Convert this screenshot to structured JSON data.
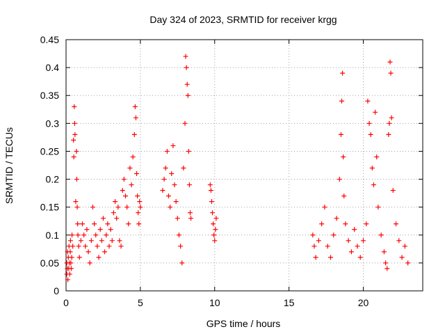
{
  "chart_data": {
    "type": "scatter",
    "title": "Day 324 of 2023, SRMTID for receiver krgg",
    "xlabel": "GPS time / hours",
    "ylabel": "SRMTID / TECUs",
    "xlim": [
      0,
      24
    ],
    "ylim": [
      0,
      0.45
    ],
    "grid": true,
    "marker": "+",
    "color": "#ff0000",
    "x_ticks": [
      0,
      5,
      10,
      15,
      20
    ],
    "x_tick_labels": [
      "0",
      "5",
      "10",
      "15",
      "20"
    ],
    "y_ticks": [
      0,
      0.05,
      0.1,
      0.15,
      0.2,
      0.25,
      0.3,
      0.35,
      0.4,
      0.45
    ],
    "y_tick_labels": [
      "0",
      "0.05",
      "0.1",
      "0.15",
      "0.2",
      "0.25",
      "0.3",
      "0.35",
      "0.4",
      "0.45"
    ],
    "series": [
      {
        "name": "SRMTID",
        "points": [
          [
            0.05,
            0.03
          ],
          [
            0.05,
            0.05
          ],
          [
            0.08,
            0.04
          ],
          [
            0.1,
            0.07
          ],
          [
            0.12,
            0.02
          ],
          [
            0.15,
            0.06
          ],
          [
            0.18,
            0.04
          ],
          [
            0.2,
            0.08
          ],
          [
            0.22,
            0.05
          ],
          [
            0.25,
            0.03
          ],
          [
            0.28,
            0.07
          ],
          [
            0.3,
            0.09
          ],
          [
            0.32,
            0.05
          ],
          [
            0.35,
            0.04
          ],
          [
            0.38,
            0.06
          ],
          [
            0.4,
            0.1
          ],
          [
            0.45,
            0.08
          ],
          [
            0.5,
            0.27
          ],
          [
            0.52,
            0.24
          ],
          [
            0.55,
            0.33
          ],
          [
            0.58,
            0.3
          ],
          [
            0.6,
            0.28
          ],
          [
            0.65,
            0.16
          ],
          [
            0.7,
            0.25
          ],
          [
            0.72,
            0.2
          ],
          [
            0.75,
            0.15
          ],
          [
            0.78,
            0.12
          ],
          [
            0.8,
            0.1
          ],
          [
            0.85,
            0.08
          ],
          [
            0.9,
            0.06
          ],
          [
            1.0,
            0.09
          ],
          [
            1.1,
            0.12
          ],
          [
            1.2,
            0.1
          ],
          [
            1.3,
            0.08
          ],
          [
            1.4,
            0.11
          ],
          [
            1.5,
            0.07
          ],
          [
            1.6,
            0.05
          ],
          [
            1.7,
            0.09
          ],
          [
            1.8,
            0.15
          ],
          [
            1.9,
            0.12
          ],
          [
            2.0,
            0.1
          ],
          [
            2.1,
            0.08
          ],
          [
            2.2,
            0.06
          ],
          [
            2.3,
            0.11
          ],
          [
            2.4,
            0.09
          ],
          [
            2.5,
            0.13
          ],
          [
            2.6,
            0.07
          ],
          [
            2.7,
            0.1
          ],
          [
            2.8,
            0.12
          ],
          [
            2.9,
            0.08
          ],
          [
            3.0,
            0.11
          ],
          [
            3.1,
            0.09
          ],
          [
            3.2,
            0.14
          ],
          [
            3.3,
            0.16
          ],
          [
            3.4,
            0.13
          ],
          [
            3.5,
            0.15
          ],
          [
            3.6,
            0.09
          ],
          [
            3.7,
            0.08
          ],
          [
            3.8,
            0.18
          ],
          [
            3.9,
            0.2
          ],
          [
            4.0,
            0.17
          ],
          [
            4.1,
            0.15
          ],
          [
            4.2,
            0.12
          ],
          [
            4.3,
            0.22
          ],
          [
            4.4,
            0.19
          ],
          [
            4.5,
            0.24
          ],
          [
            4.6,
            0.28
          ],
          [
            4.65,
            0.33
          ],
          [
            4.7,
            0.31
          ],
          [
            4.75,
            0.21
          ],
          [
            4.8,
            0.17
          ],
          [
            4.85,
            0.14
          ],
          [
            4.9,
            0.12
          ],
          [
            4.95,
            0.16
          ],
          [
            5.0,
            0.15
          ],
          [
            6.5,
            0.18
          ],
          [
            6.6,
            0.2
          ],
          [
            6.7,
            0.22
          ],
          [
            6.8,
            0.25
          ],
          [
            6.9,
            0.17
          ],
          [
            7.0,
            0.15
          ],
          [
            7.1,
            0.21
          ],
          [
            7.2,
            0.26
          ],
          [
            7.3,
            0.19
          ],
          [
            7.4,
            0.16
          ],
          [
            7.5,
            0.13
          ],
          [
            7.6,
            0.1
          ],
          [
            7.7,
            0.08
          ],
          [
            7.8,
            0.05
          ],
          [
            7.9,
            0.22
          ],
          [
            8.0,
            0.3
          ],
          [
            8.05,
            0.42
          ],
          [
            8.1,
            0.4
          ],
          [
            8.15,
            0.37
          ],
          [
            8.2,
            0.35
          ],
          [
            8.25,
            0.25
          ],
          [
            8.3,
            0.19
          ],
          [
            8.35,
            0.14
          ],
          [
            8.4,
            0.13
          ],
          [
            9.7,
            0.19
          ],
          [
            9.75,
            0.18
          ],
          [
            9.8,
            0.16
          ],
          [
            9.85,
            0.14
          ],
          [
            9.9,
            0.12
          ],
          [
            9.95,
            0.1
          ],
          [
            10.0,
            0.09
          ],
          [
            10.05,
            0.11
          ],
          [
            10.1,
            0.13
          ],
          [
            16.6,
            0.1
          ],
          [
            16.7,
            0.08
          ],
          [
            16.8,
            0.06
          ],
          [
            17.0,
            0.09
          ],
          [
            17.2,
            0.12
          ],
          [
            17.4,
            0.15
          ],
          [
            17.6,
            0.08
          ],
          [
            17.8,
            0.06
          ],
          [
            18.0,
            0.1
          ],
          [
            18.2,
            0.13
          ],
          [
            18.4,
            0.2
          ],
          [
            18.5,
            0.28
          ],
          [
            18.55,
            0.34
          ],
          [
            18.6,
            0.39
          ],
          [
            18.65,
            0.24
          ],
          [
            18.7,
            0.17
          ],
          [
            18.8,
            0.12
          ],
          [
            19.0,
            0.09
          ],
          [
            19.2,
            0.07
          ],
          [
            19.4,
            0.11
          ],
          [
            19.6,
            0.08
          ],
          [
            19.8,
            0.06
          ],
          [
            20.0,
            0.09
          ],
          [
            20.2,
            0.12
          ],
          [
            20.3,
            0.34
          ],
          [
            20.4,
            0.3
          ],
          [
            20.5,
            0.28
          ],
          [
            20.6,
            0.22
          ],
          [
            20.7,
            0.19
          ],
          [
            20.8,
            0.32
          ],
          [
            20.9,
            0.24
          ],
          [
            21.0,
            0.15
          ],
          [
            21.2,
            0.1
          ],
          [
            21.4,
            0.07
          ],
          [
            21.5,
            0.05
          ],
          [
            21.6,
            0.04
          ],
          [
            21.7,
            0.28
          ],
          [
            21.75,
            0.3
          ],
          [
            21.8,
            0.41
          ],
          [
            21.85,
            0.39
          ],
          [
            21.9,
            0.31
          ],
          [
            22.0,
            0.18
          ],
          [
            22.2,
            0.12
          ],
          [
            22.4,
            0.09
          ],
          [
            22.6,
            0.06
          ],
          [
            22.8,
            0.08
          ],
          [
            23.0,
            0.05
          ]
        ]
      }
    ]
  }
}
